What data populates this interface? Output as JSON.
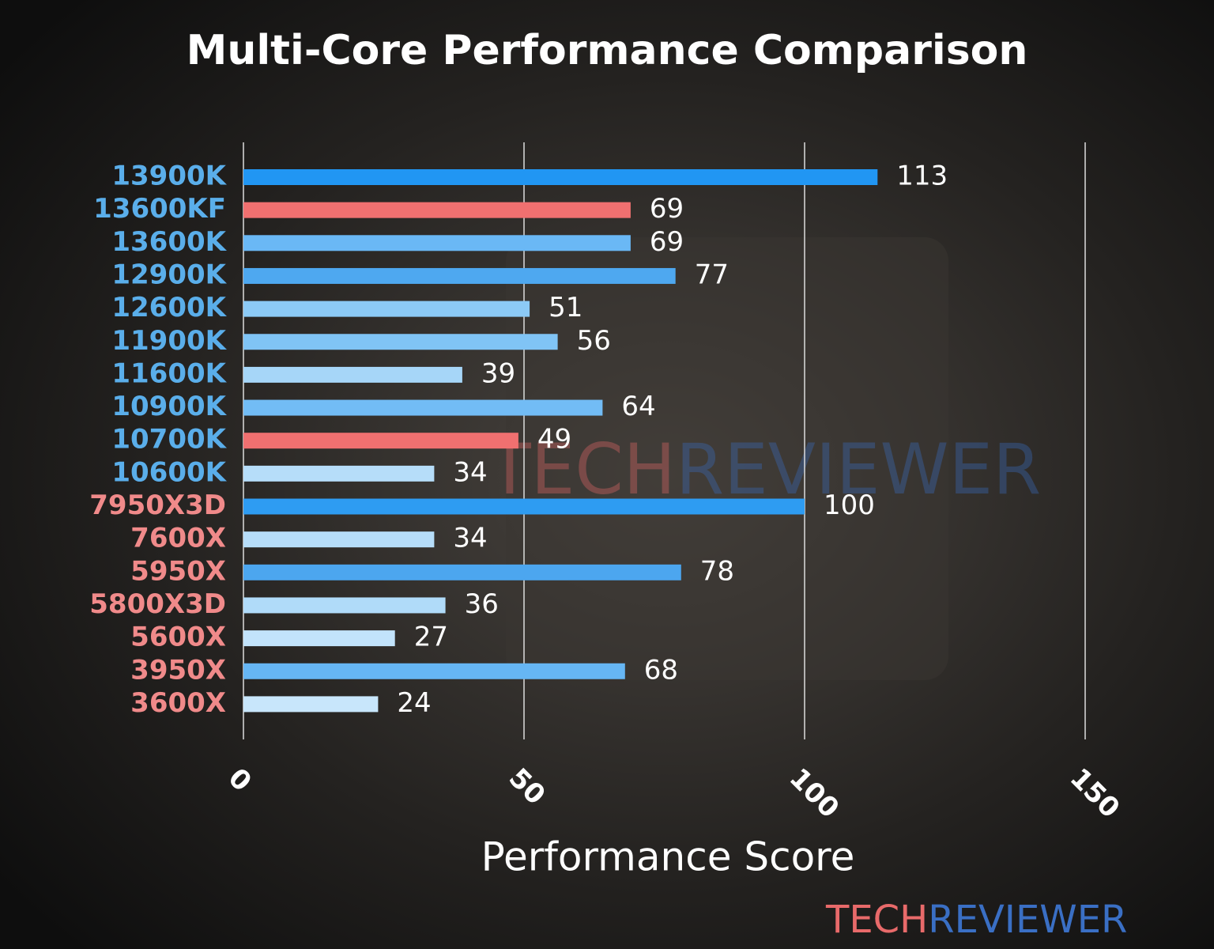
{
  "chart_data": {
    "type": "barh",
    "title": "Multi-Core Performance Comparison",
    "xlabel": "Performance Score",
    "categories": [
      "13900K",
      "13600KF",
      "13600K",
      "12900K",
      "12600K",
      "11900K",
      "11600K",
      "10900K",
      "10700K",
      "10600K",
      "7950X3D",
      "7600X",
      "5950X",
      "5800X3D",
      "5600X",
      "3950X",
      "3600X"
    ],
    "values": [
      113,
      69,
      69,
      77,
      51,
      56,
      39,
      64,
      49,
      34,
      100,
      34,
      78,
      36,
      27,
      68,
      24
    ],
    "colors": [
      "#2196f3",
      "#f07070",
      "#6ab8f5",
      "#4ea8f0",
      "#8ccaf6",
      "#80c4f5",
      "#a6d6f8",
      "#72bcf5",
      "#f07070",
      "#b6ddf9",
      "#2e9cf2",
      "#b6ddf9",
      "#4ca6ef",
      "#b0dbf9",
      "#c2e3fb",
      "#66b6f4",
      "#c8e6fb"
    ],
    "label_colors": [
      "#5aaeea",
      "#5aaeea",
      "#5aaeea",
      "#5aaeea",
      "#5aaeea",
      "#5aaeea",
      "#5aaeea",
      "#5aaeea",
      "#5aaeea",
      "#5aaeea",
      "#f08a8a",
      "#f08a8a",
      "#f08a8a",
      "#f08a8a",
      "#f08a8a",
      "#f08a8a",
      "#f08a8a"
    ],
    "xlim": [
      0,
      150
    ],
    "xticks": [
      0,
      50,
      100,
      150
    ],
    "grid": true,
    "watermark": [
      {
        "text": "TECH",
        "color": "#e86a6a"
      },
      {
        "text": "REVIEWER",
        "color": "#3a6fc4"
      }
    ]
  }
}
